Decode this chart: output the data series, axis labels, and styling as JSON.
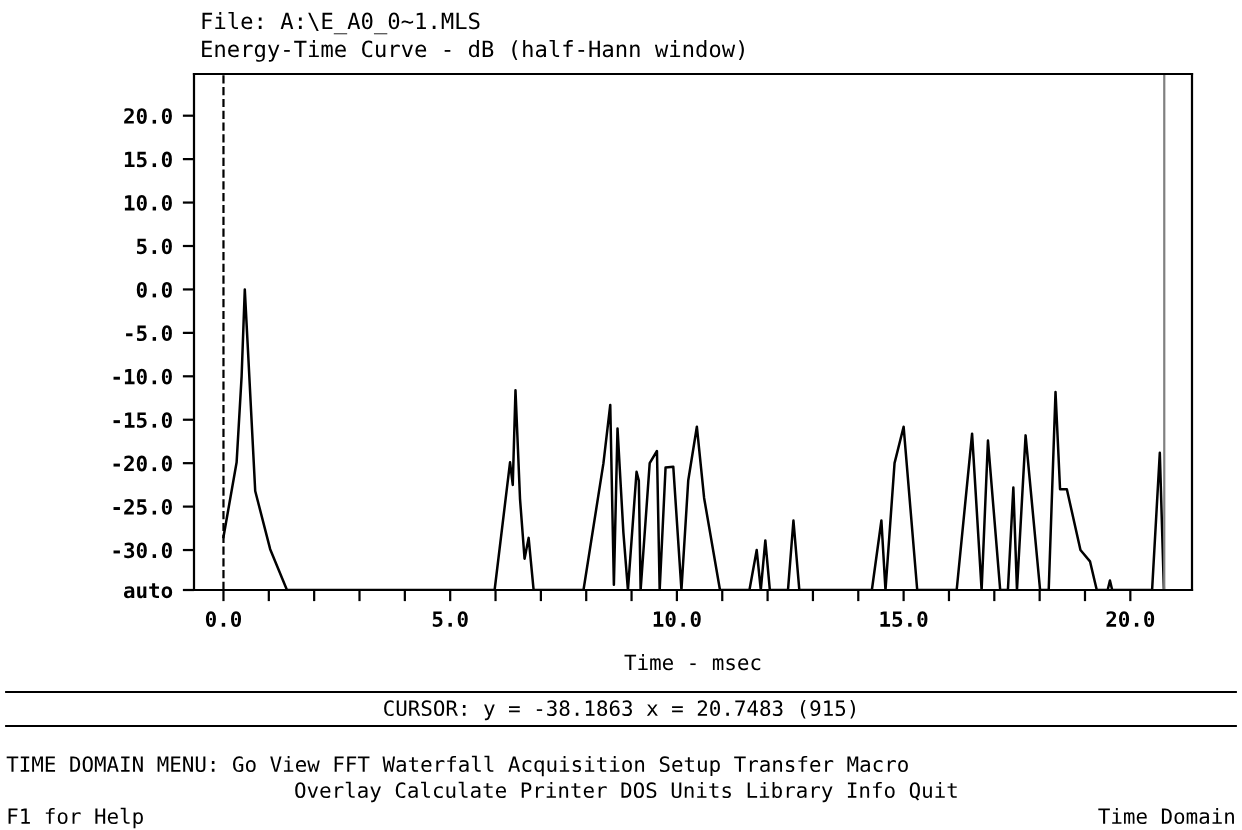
{
  "chart_data": {
    "type": "line",
    "title": "File: A:\\E_A0_0~1.MLS",
    "subtitle": "Energy-Time Curve - dB (half-Hann window)",
    "xlabel": "Time - msec",
    "series": [
      {
        "color": "#000000",
        "x": [
          0.0,
          0.29,
          0.4,
          0.47,
          0.55,
          0.7,
          1.03,
          1.4,
          5.98,
          6.32,
          6.38,
          6.44,
          6.54,
          6.64,
          6.73,
          6.84,
          7.94,
          8.38,
          8.53,
          8.61,
          8.69,
          8.82,
          8.92,
          9.11,
          9.16,
          9.2,
          9.4,
          9.56,
          9.62,
          9.75,
          9.92,
          10.1,
          10.25,
          10.44,
          10.6,
          10.95,
          11.6,
          11.76,
          11.85,
          11.95,
          12.05,
          12.45,
          12.57,
          12.7,
          14.3,
          14.51,
          14.6,
          14.8,
          15.0,
          15.3,
          16.17,
          16.51,
          16.72,
          16.86,
          17.13,
          17.3,
          17.42,
          17.5,
          17.69,
          18.01,
          18.2,
          18.35,
          18.45,
          18.6,
          18.9,
          19.11,
          19.26,
          19.5,
          19.55,
          19.6,
          20.48,
          20.65,
          20.74
        ],
        "values": [
          -28.5,
          -19.9,
          -10,
          0,
          -8,
          -23.2,
          -29.9,
          -34.6,
          -34.6,
          -19.9,
          -22.5,
          -11.6,
          -24.1,
          -31,
          -28.6,
          -34.6,
          -34.6,
          -20,
          -13.3,
          -34,
          -16,
          -28,
          -34.6,
          -21,
          -22,
          -34.6,
          -20,
          -18.6,
          -34.6,
          -20.5,
          -20.4,
          -34.6,
          -22,
          -15.8,
          -24,
          -34.6,
          -34.6,
          -30,
          -34.6,
          -28.9,
          -34.6,
          -34.6,
          -26.6,
          -34.6,
          -34.6,
          -26.6,
          -34.6,
          -20,
          -15.8,
          -34.6,
          -34.6,
          -16.6,
          -34.6,
          -17.4,
          -34.6,
          -34.6,
          -22.8,
          -34.6,
          -16.8,
          -34.6,
          -34.6,
          -11.8,
          -23,
          -23,
          -30,
          -31.3,
          -34.6,
          -34.6,
          -33.5,
          -34.6,
          -34.6,
          -18.8,
          -34.6
        ]
      }
    ],
    "xlim": [
      -0.65,
      21.36
    ],
    "ylim": [
      -34.6,
      24.8
    ],
    "xticks": [
      {
        "value": 0,
        "label": "0.0"
      },
      {
        "value": 1,
        "label": null
      },
      {
        "value": 2,
        "label": null
      },
      {
        "value": 3,
        "label": null
      },
      {
        "value": 4,
        "label": null
      },
      {
        "value": 5,
        "label": "5.0"
      },
      {
        "value": 6,
        "label": null
      },
      {
        "value": 7,
        "label": null
      },
      {
        "value": 8,
        "label": null
      },
      {
        "value": 9,
        "label": null
      },
      {
        "value": 10,
        "label": "10.0"
      },
      {
        "value": 11,
        "label": null
      },
      {
        "value": 12,
        "label": null
      },
      {
        "value": 13,
        "label": null
      },
      {
        "value": 14,
        "label": null
      },
      {
        "value": 15,
        "label": "15.0"
      },
      {
        "value": 16,
        "label": null
      },
      {
        "value": 17,
        "label": null
      },
      {
        "value": 18,
        "label": null
      },
      {
        "value": 19,
        "label": null
      },
      {
        "value": 20,
        "label": "20.0"
      }
    ],
    "yticks": [
      {
        "value": -34.6,
        "label": "auto"
      },
      {
        "value": -30,
        "label": "-30.0"
      },
      {
        "value": -25,
        "label": "-25.0"
      },
      {
        "value": -20,
        "label": "-20.0"
      },
      {
        "value": -15,
        "label": "-15.0"
      },
      {
        "value": -10,
        "label": "-10.0"
      },
      {
        "value": -5,
        "label": "-5.0"
      },
      {
        "value": 0,
        "label": "0.0"
      },
      {
        "value": 5,
        "label": "5.0"
      },
      {
        "value": 10,
        "label": "10.0"
      },
      {
        "value": 15,
        "label": "15.0"
      },
      {
        "value": 20,
        "label": "20.0"
      }
    ],
    "ref_lines": [
      {
        "axis": "x",
        "value": 0,
        "line_style": "dashed",
        "color": "#000000"
      },
      {
        "axis": "x",
        "value": 20.7483,
        "line_style": "solid",
        "color": "#808080"
      }
    ],
    "grid": false,
    "legend": false,
    "marker": "none",
    "line_style": "solid",
    "annotations": [
      "CURSOR: y = -38.1863 x = 20.7483 (915)",
      "TIME DOMAIN MENU: Go View FFT Waterfall Acquisition Setup Transfer Macro",
      "Overlay Calculate Printer DOS Units Library Info Quit",
      "F1 for Help",
      "Time Domain"
    ]
  }
}
